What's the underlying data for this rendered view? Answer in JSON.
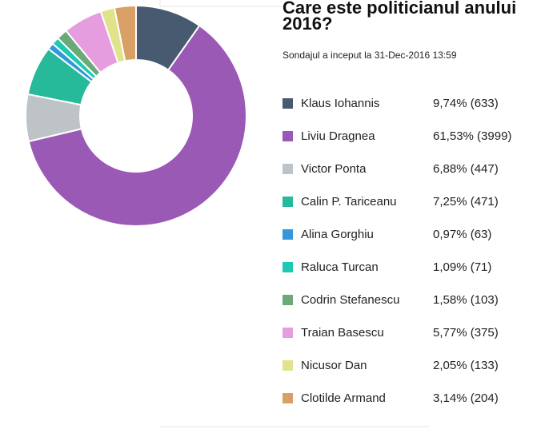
{
  "chart_data": {
    "type": "donut",
    "title": "Care este politicianul anului 2016?",
    "subtitle": "Sondajul a inceput la 31-Dec-2016 13:59",
    "categories": [
      "Klaus Iohannis",
      "Liviu Dragnea",
      "Victor Ponta",
      "Calin P. Tariceanu",
      "Alina Gorghiu",
      "Raluca Turcan",
      "Codrin Stefanescu",
      "Traian Basescu",
      "Nicusor Dan",
      "Clotilde Armand"
    ],
    "values": [
      633,
      3999,
      447,
      471,
      63,
      71,
      103,
      375,
      133,
      204
    ],
    "value_labels": [
      "9,74% (633)",
      "61,53% (3999)",
      "6,88% (447)",
      "7,25% (471)",
      "0,97% (63)",
      "1,09% (71)",
      "1,58% (103)",
      "5,77% (375)",
      "2,05% (133)",
      "3,14% (204)"
    ],
    "colors": [
      "#475a70",
      "#9b59b6",
      "#bdc3c7",
      "#26b99a",
      "#3498db",
      "#1dc9b0",
      "#6aa978",
      "#e59de0",
      "#e0e38a",
      "#d9a066"
    ]
  }
}
